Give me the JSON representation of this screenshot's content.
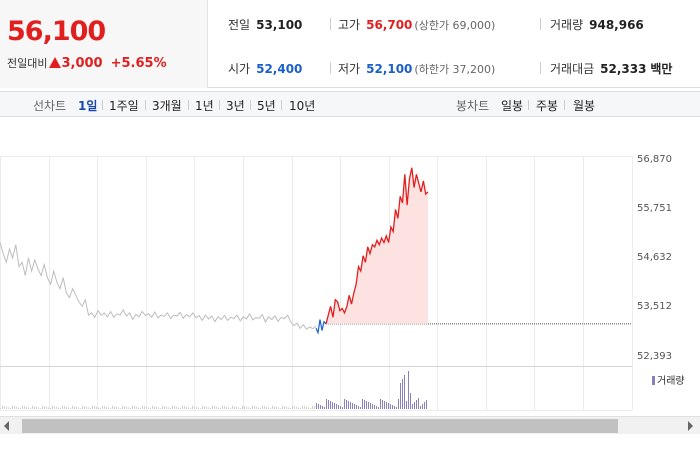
{
  "quote": {
    "price": "56,100",
    "change_label": "전일대비",
    "change_value": "3,000",
    "change_pct": "+5.65%",
    "prev_close_label": "전일",
    "prev_close": "53,100",
    "high_label": "고가",
    "high": "56,700",
    "upper_limit": "(상한가 69,000)",
    "volume_label": "거래량",
    "volume": "948,966",
    "open_label": "시가",
    "open": "52,400",
    "low_label": "저가",
    "low": "52,100",
    "lower_limit": "(하한가 37,200)",
    "trade_value_label": "거래대금",
    "trade_value": "52,333",
    "trade_value_unit": "백만",
    "up_color": "#e21f1f",
    "down_color": "#1a5fcc"
  },
  "periods": {
    "line_label": "선차트",
    "line_items": [
      "1일",
      "1주일",
      "3개월",
      "1년",
      "3년",
      "5년",
      "10년"
    ],
    "active": "1일",
    "candle_label": "봉차트",
    "candle_items": [
      "일봉",
      "주봉",
      "월봉"
    ]
  },
  "chart_data": {
    "type": "line",
    "y_ticks": [
      "56,870",
      "55,751",
      "54,632",
      "53,512",
      "52,393"
    ],
    "ylim": [
      52393,
      56870
    ],
    "reference_price": 53100,
    "series": [
      {
        "role": "previous-day",
        "color": "#bdbdbd",
        "values": [
          54950,
          54700,
          54500,
          54800,
          54600,
          54900,
          54400,
          54500,
          54200,
          54600,
          54300,
          54550,
          54350,
          54200,
          54450,
          54150,
          54000,
          54300,
          54050,
          53900,
          54150,
          53800,
          53700,
          53900,
          53750,
          53600,
          53500,
          53650,
          53300,
          53350,
          53250,
          53400,
          53300,
          53350,
          53260,
          53380,
          53250,
          53330,
          53300,
          53420,
          53280,
          53350,
          53200,
          53320,
          53260,
          53380,
          53290,
          53330,
          53250,
          53370,
          53240,
          53300,
          53270,
          53350,
          53220,
          53300,
          53280,
          53360,
          53230,
          53310,
          53260,
          53350,
          53240,
          53290,
          53180,
          53300,
          53210,
          53280,
          53150,
          53260,
          53200,
          53290,
          53180,
          53250,
          53220,
          53300,
          53170,
          53260,
          53210,
          53330,
          53190,
          53240,
          53230,
          53310,
          53140,
          53260,
          53200,
          53280,
          53160,
          53250,
          53220,
          53300,
          53150,
          53060,
          53120,
          53000,
          53080,
          52980,
          53030,
          52990,
          53050
        ]
      },
      {
        "role": "today",
        "color": "#e21f1f",
        "values": [
          53100,
          53300,
          53500,
          53250,
          53650,
          53600,
          53400,
          53450,
          53350,
          53500,
          53750,
          53550,
          53800,
          54000,
          54400,
          54300,
          54650,
          54500,
          54850,
          54700,
          54900,
          54850,
          55000,
          54900,
          55050,
          54950,
          55100,
          54950,
          55300,
          55200,
          55700,
          55500,
          56000,
          55850,
          56500,
          55800,
          56400,
          56650,
          56200,
          56500,
          56300,
          56100,
          56350,
          56050,
          56100
        ]
      }
    ],
    "volume_legend": "거래량"
  }
}
